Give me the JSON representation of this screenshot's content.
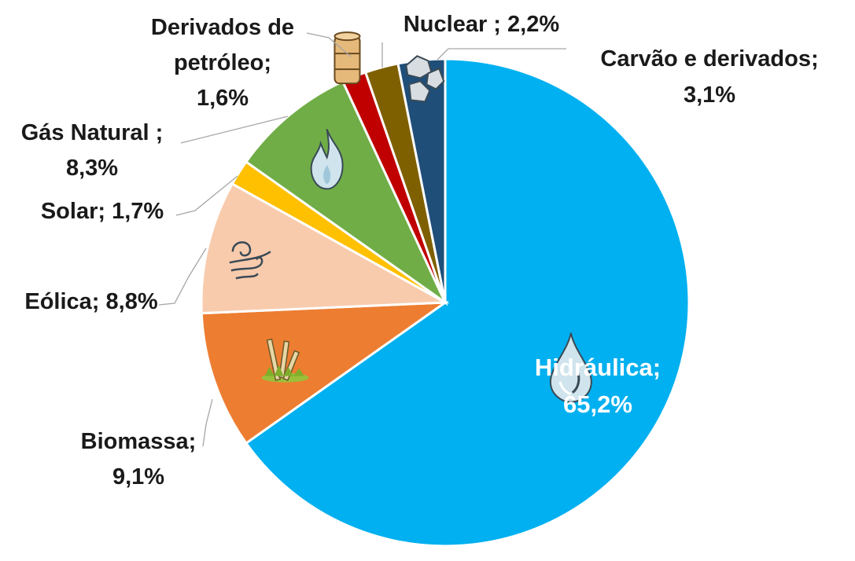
{
  "chart_data": {
    "type": "pie",
    "title": "",
    "start_angle_deg": 0,
    "direction": "clockwise",
    "legend": "none",
    "series": [
      {
        "name": "Hidráulica",
        "label": "Hidráulica;",
        "value": 65.2,
        "value_label": "65,2%",
        "color": "#00B0F0",
        "icon": "water-drop-icon"
      },
      {
        "name": "Biomassa",
        "label": "Biomassa;",
        "value": 9.1,
        "value_label": "9,1%",
        "color": "#ED7D31",
        "icon": "sugarcane-icon"
      },
      {
        "name": "Eólica",
        "label": "Eólica; 8,8%",
        "value": 8.8,
        "value_label": "",
        "color": "#F8CBAD",
        "icon": "wind-icon"
      },
      {
        "name": "Solar",
        "label": "Solar; 1,7%",
        "value": 1.7,
        "value_label": "",
        "color": "#FFC000",
        "icon": ""
      },
      {
        "name": "Gás Natural",
        "label": "Gás Natural ;",
        "value": 8.3,
        "value_label": "8,3%",
        "color": "#70AD47",
        "icon": "gas-flame-icon"
      },
      {
        "name": "Derivados de petróleo",
        "label": "Derivados de",
        "label2": "petróleo;",
        "value": 1.6,
        "value_label": "1,6%",
        "color": "#C00000",
        "icon": "oil-barrel-icon"
      },
      {
        "name": "Nuclear",
        "label": "Nuclear ; 2,2%",
        "value": 2.2,
        "value_label": "",
        "color": "#7F6000",
        "icon": ""
      },
      {
        "name": "Carvão e derivados",
        "label": "Carvão e derivados;",
        "value": 3.1,
        "value_label": "3,1%",
        "color": "#1F4E79",
        "icon": "coal-icon"
      }
    ]
  }
}
